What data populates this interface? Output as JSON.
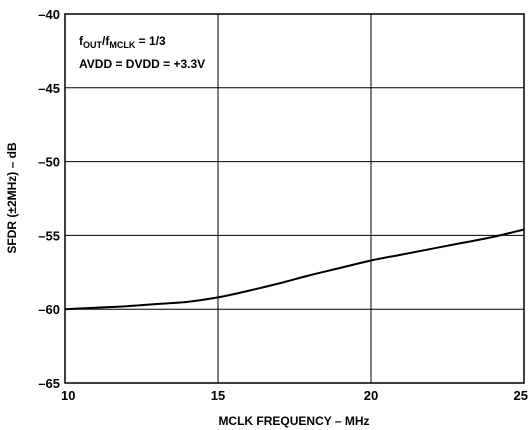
{
  "chart_data": {
    "type": "line",
    "xlabel": "MCLK FREQUENCY – MHz",
    "ylabel": "SFDR (±2MHz) – dB",
    "xlim": [
      10,
      25
    ],
    "ylim": [
      -65,
      -40
    ],
    "x_ticks": [
      10,
      15,
      20,
      25
    ],
    "x_tick_labels": [
      "10",
      "15",
      "20",
      "25"
    ],
    "y_ticks": [
      -40,
      -45,
      -50,
      -55,
      -60,
      -65
    ],
    "y_tick_labels": [
      "–40",
      "–45",
      "–50",
      "–55",
      "–60",
      "–65"
    ],
    "grid": true,
    "annotations": {
      "line1": {
        "f1": "f",
        "s1": "OUT",
        "mid": "/f",
        "s2": "MCLK",
        "tail": " = 1/3"
      },
      "line2": "AVDD = DVDD = +3.3V"
    },
    "series": [
      {
        "x": [
          10,
          11,
          12,
          13,
          14,
          15,
          16,
          17,
          18,
          19,
          20,
          21,
          22,
          23,
          24,
          25
        ],
        "values": [
          -60.0,
          -59.9,
          -59.8,
          -59.65,
          -59.5,
          -59.2,
          -58.75,
          -58.25,
          -57.7,
          -57.2,
          -56.7,
          -56.3,
          -55.9,
          -55.5,
          -55.1,
          -54.6
        ],
        "color": "#000000"
      }
    ]
  }
}
